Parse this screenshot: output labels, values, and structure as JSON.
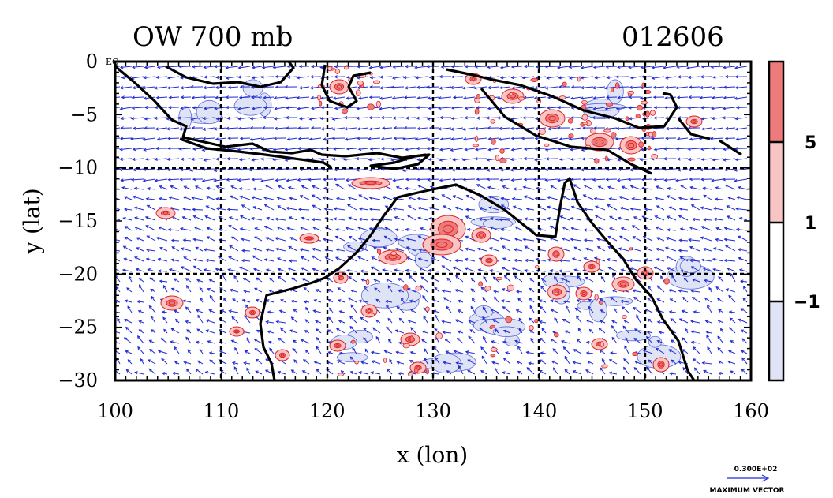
{
  "chart_data": {
    "type": "contour",
    "title_left": "OW 700 mb",
    "title_right": "012606",
    "xlabel": "x (lon)",
    "ylabel": "y (lat)",
    "xlim": [
      100,
      160
    ],
    "ylim": [
      -30,
      0
    ],
    "xticks": [
      100,
      110,
      120,
      130,
      140,
      150,
      160
    ],
    "yticks": [
      0,
      -5,
      -10,
      -15,
      -20,
      -25,
      -30
    ],
    "xtick_labels": [
      "100",
      "110",
      "120",
      "130",
      "140",
      "150",
      "160"
    ],
    "ytick_labels": [
      "0",
      "−5",
      "−10",
      "−15",
      "−20",
      "−25",
      "−30"
    ],
    "origin_label": "EQ",
    "grid_lon": [
      110,
      120,
      130,
      140,
      150
    ],
    "grid_lat": [
      -10,
      -20
    ],
    "colorbar": {
      "levels": [
        -1,
        1,
        5
      ],
      "tick_labels": [
        "−1",
        "1",
        "5"
      ],
      "colors": [
        "#e0e3f5",
        "#ffffff",
        "#f8c4c4",
        "#ee7b7b"
      ]
    },
    "vector_legend": {
      "value": "0.300E+02",
      "label": "MAXIMUM VECTOR"
    },
    "colors": {
      "vector": "#1f2bd6",
      "positive_contour": "#dd2222",
      "negative_contour": "#2233cc",
      "coast": "#000000"
    }
  }
}
